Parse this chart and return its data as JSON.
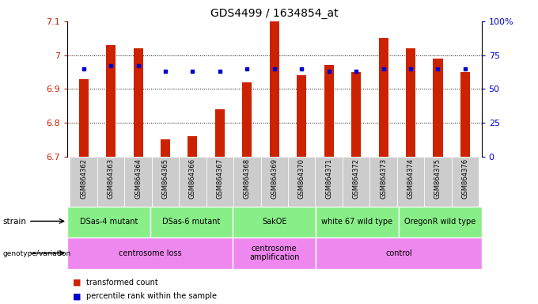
{
  "title": "GDS4499 / 1634854_at",
  "samples": [
    "GSM864362",
    "GSM864363",
    "GSM864364",
    "GSM864365",
    "GSM864366",
    "GSM864367",
    "GSM864368",
    "GSM864369",
    "GSM864370",
    "GSM864371",
    "GSM864372",
    "GSM864373",
    "GSM864374",
    "GSM864375",
    "GSM864376"
  ],
  "red_values": [
    6.93,
    7.03,
    7.02,
    6.75,
    6.76,
    6.84,
    6.92,
    7.1,
    6.94,
    6.97,
    6.95,
    7.05,
    7.02,
    6.99,
    6.95
  ],
  "blue_pct": [
    65,
    67,
    67,
    63,
    63,
    63,
    65,
    65,
    65,
    63,
    63,
    65,
    65,
    65,
    65
  ],
  "ylim": [
    6.7,
    7.1
  ],
  "right_ylim": [
    0,
    100
  ],
  "right_yticks": [
    0,
    25,
    50,
    75,
    100
  ],
  "right_yticklabels": [
    "0",
    "25",
    "50",
    "75",
    "100%"
  ],
  "yticks": [
    6.7,
    6.8,
    6.9,
    7.0,
    7.1
  ],
  "yticklabels": [
    "6.7",
    "6.8",
    "6.9",
    "7",
    "7.1"
  ],
  "bar_color": "#cc2200",
  "dot_color": "#0000cc",
  "bar_bottom": 6.7,
  "bar_width": 0.35,
  "strain_groups": [
    {
      "label": "DSas-4 mutant",
      "start": 0,
      "end": 3
    },
    {
      "label": "DSas-6 mutant",
      "start": 3,
      "end": 6
    },
    {
      "label": "SakOE",
      "start": 6,
      "end": 9
    },
    {
      "label": "white 67 wild type",
      "start": 9,
      "end": 12
    },
    {
      "label": "OregonR wild type",
      "start": 12,
      "end": 15
    }
  ],
  "genotype_groups": [
    {
      "label": "centrosome loss",
      "start": 0,
      "end": 6
    },
    {
      "label": "centrosome\namplification",
      "start": 6,
      "end": 9
    },
    {
      "label": "control",
      "start": 9,
      "end": 15
    }
  ],
  "strain_color": "#88ee88",
  "genotype_color": "#ee88ee",
  "xtick_bg_color": "#cccccc",
  "legend_items": [
    {
      "color": "#cc2200",
      "label": "transformed count"
    },
    {
      "color": "#0000cc",
      "label": "percentile rank within the sample"
    }
  ],
  "left_tick_color": "#cc2200",
  "right_tick_color": "#0000cc",
  "grid_yticks": [
    6.8,
    6.9,
    7.0
  ]
}
